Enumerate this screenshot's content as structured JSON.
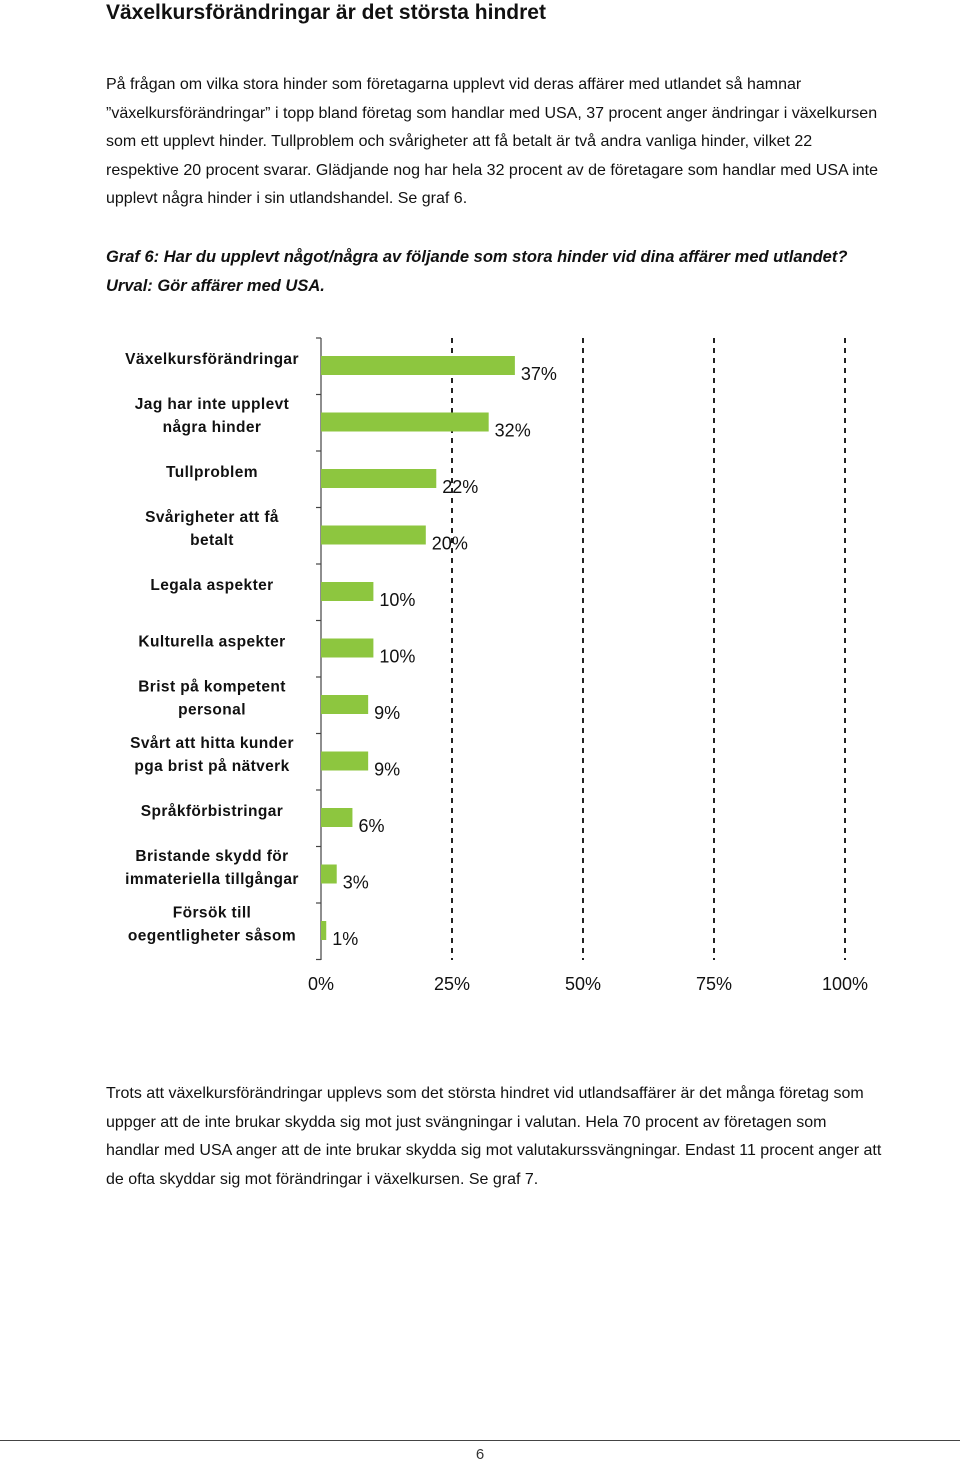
{
  "heading": "Växelkursförändringar är det största hindret",
  "intro_lines": [
    "På frågan om vilka stora hinder som företagarna upplevt vid deras affärer med utlandet så hamnar",
    "”växelkursförändringar” i topp bland företag som handlar med USA, 37 procent anger ändringar i växelkursen",
    "som ett upplevt hinder. Tullproblem och svårigheter att få betalt är två andra vanliga hinder, vilket 22",
    "respektive 20 procent svarar. Glädjande nog har hela 32 procent av de företagare som handlar med USA inte",
    "upplevt några hinder i sin utlandshandel. Se graf 6."
  ],
  "graph_title": {
    "line1": "Graf 6: Har du upplevt något/några av följande som stora hinder vid dina affärer med utlandet?",
    "line2": "Urval: Gör affärer med USA."
  },
  "chart_data": {
    "type": "bar",
    "orientation": "horizontal",
    "categories": [
      [
        "Växelkursförändringar"
      ],
      [
        "Jag har inte upplevt",
        "några hinder"
      ],
      [
        "Tullproblem"
      ],
      [
        "Svårigheter att få",
        "betalt"
      ],
      [
        "Legala aspekter"
      ],
      [
        "Kulturella aspekter"
      ],
      [
        "Brist på kompetent",
        "personal"
      ],
      [
        "Svårt att hitta kunder",
        "pga brist på nätverk"
      ],
      [
        "Språkförbistringar"
      ],
      [
        "Bristande skydd för",
        "immateriella tillgångar"
      ],
      [
        "Försök till",
        "oegentligheter såsom"
      ]
    ],
    "values": [
      37,
      32,
      22,
      20,
      10,
      10,
      9,
      9,
      6,
      3,
      1
    ],
    "value_labels": [
      "37%",
      "32%",
      "22%",
      "20%",
      "10%",
      "10%",
      "9%",
      "9%",
      "6%",
      "3%",
      "1%"
    ],
    "xlim": [
      0,
      100
    ],
    "x_ticks": [
      0,
      25,
      50,
      75,
      100
    ],
    "x_tick_labels": [
      "0%",
      "25%",
      "50%",
      "75%",
      "100%"
    ],
    "grid": "vertical dashed",
    "bar_color": "#8dc63f"
  },
  "outro_lines": [
    "Trots att växelkursförändringar upplevs som det största hindret vid utlandsaffärer är det många företag som",
    "uppger att de inte brukar skydda sig mot just svängningar i valutan. Hela 70 procent av företagen som",
    "handlar med USA anger att de inte brukar skydda sig mot valutakurssvängningar. Endast 11 procent anger att",
    "de ofta skyddar sig mot förändringar i växelkursen. Se graf 7."
  ],
  "page_number": "6"
}
